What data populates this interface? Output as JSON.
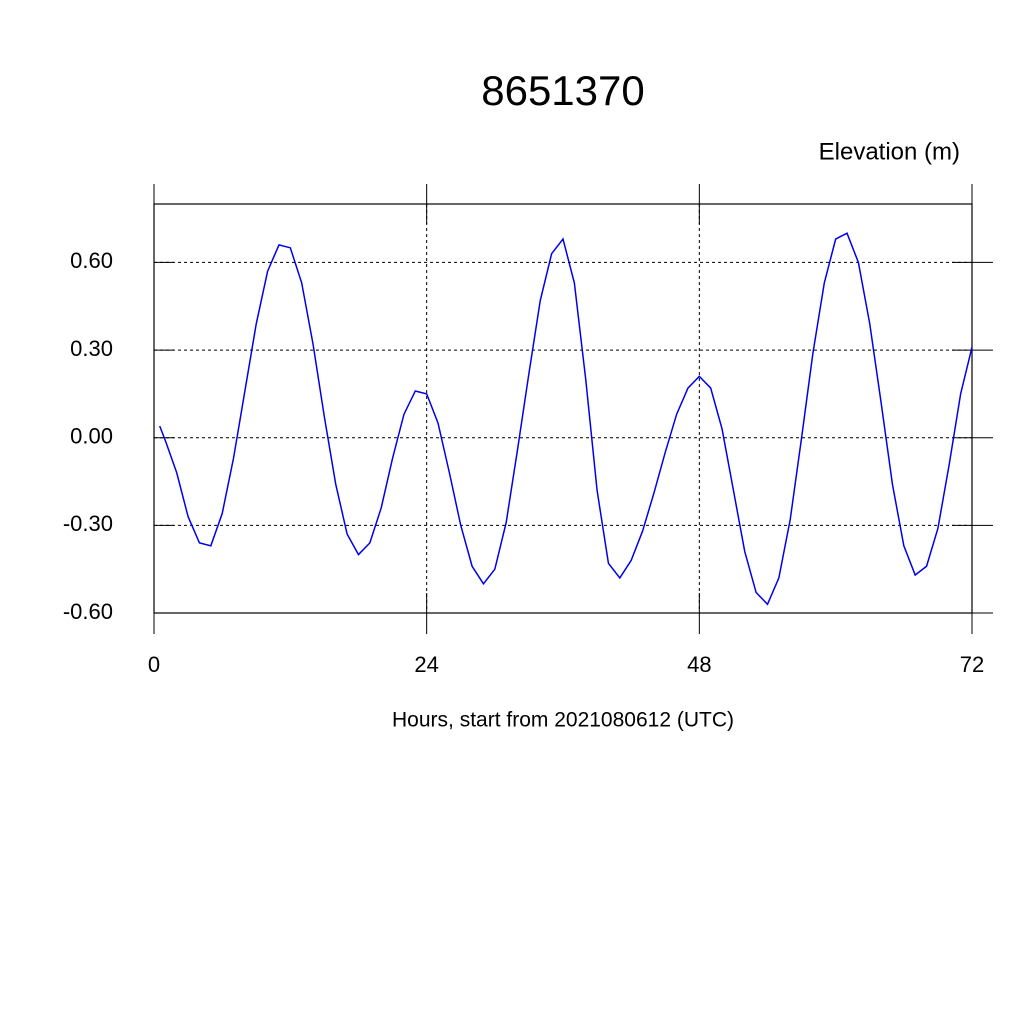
{
  "chart_data": {
    "type": "line",
    "title": "8651370",
    "subtitle": "Elevation (m)",
    "x_label": "Hours, start from 2021080612 (UTC)",
    "x": [
      0.5,
      1,
      2,
      3,
      4,
      5,
      6,
      7,
      8,
      9,
      10,
      11,
      12,
      13,
      14,
      15,
      16,
      17,
      18,
      19,
      20,
      21,
      22,
      23,
      24,
      25,
      26,
      27,
      28,
      29,
      30,
      31,
      32,
      33,
      34,
      35,
      36,
      37,
      38,
      39,
      40,
      41,
      42,
      43,
      44,
      45,
      46,
      47,
      48,
      49,
      50,
      51,
      52,
      53,
      54,
      55,
      56,
      57,
      58,
      59,
      60,
      61,
      62,
      63,
      64,
      65,
      66,
      67,
      68,
      69,
      70,
      71,
      72
    ],
    "series": [
      {
        "color": "#0000ee",
        "values": [
          0.04,
          -0.01,
          -0.12,
          -0.27,
          -0.36,
          -0.37,
          -0.26,
          -0.07,
          0.16,
          0.39,
          0.57,
          0.66,
          0.65,
          0.53,
          0.32,
          0.07,
          -0.16,
          -0.33,
          -0.4,
          -0.36,
          -0.24,
          -0.07,
          0.08,
          0.16,
          0.15,
          0.05,
          -0.12,
          -0.3,
          -0.44,
          -0.5,
          -0.45,
          -0.29,
          -0.04,
          0.22,
          0.47,
          0.63,
          0.68,
          0.53,
          0.2,
          -0.18,
          -0.43,
          -0.48,
          -0.42,
          -0.32,
          -0.19,
          -0.05,
          0.08,
          0.17,
          0.21,
          0.17,
          0.03,
          -0.18,
          -0.39,
          -0.53,
          -0.57,
          -0.48,
          -0.28,
          0.0,
          0.29,
          0.53,
          0.68,
          0.7,
          0.6,
          0.39,
          0.12,
          -0.16,
          -0.37,
          -0.47,
          -0.44,
          -0.31,
          -0.09,
          0.15,
          0.31
        ]
      }
    ],
    "xlim": [
      0,
      72
    ],
    "xticks": [
      0,
      24,
      48,
      72
    ],
    "ylim": [
      -0.6,
      0.8
    ],
    "yticks": [
      {
        "value": -0.6,
        "label": "-0.60"
      },
      {
        "value": -0.3,
        "label": "-0.30"
      },
      {
        "value": 0,
        "label": "0.00"
      },
      {
        "value": 0.3,
        "label": "0.30"
      },
      {
        "value": 0.6,
        "label": "0.60"
      }
    ],
    "grid": true
  }
}
